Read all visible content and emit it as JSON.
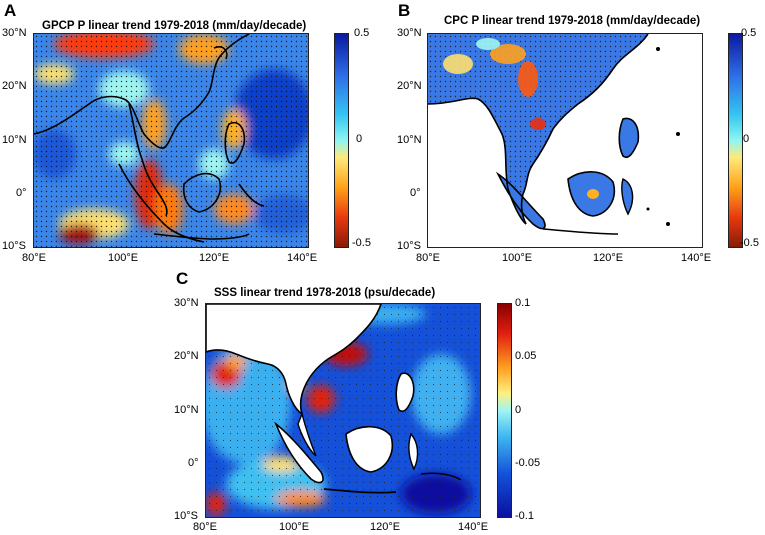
{
  "panels": {
    "A": {
      "letter": "A",
      "title": "GPCP P linear trend 1979-2018 (mm/day/decade)",
      "colorbar": [
        "0.5",
        "0",
        "-0.5"
      ]
    },
    "B": {
      "letter": "B",
      "title": "CPC P linear trend 1979-2018 (mm/day/decade)",
      "colorbar": [
        "0.5",
        "0",
        "-0.5"
      ]
    },
    "C": {
      "letter": "C",
      "title": "SSS linear trend 1978-2018 (psu/decade)",
      "colorbar": [
        "0.1",
        "0.05",
        "0",
        "-0.05",
        "-0.1"
      ]
    }
  },
  "lat_labels": [
    "30°N",
    "20°N",
    "10°N",
    "0°",
    "10°S"
  ],
  "lon_labels": [
    "80°E",
    "100°E",
    "120°E",
    "140°E"
  ],
  "colors": {
    "strong_positive_precip": "#0a2aa8",
    "neutral": "#00e0ff",
    "strong_negative_precip": "#a01010",
    "salinity_high": "#b00000",
    "salinity_low": "#0a1aa0"
  }
}
